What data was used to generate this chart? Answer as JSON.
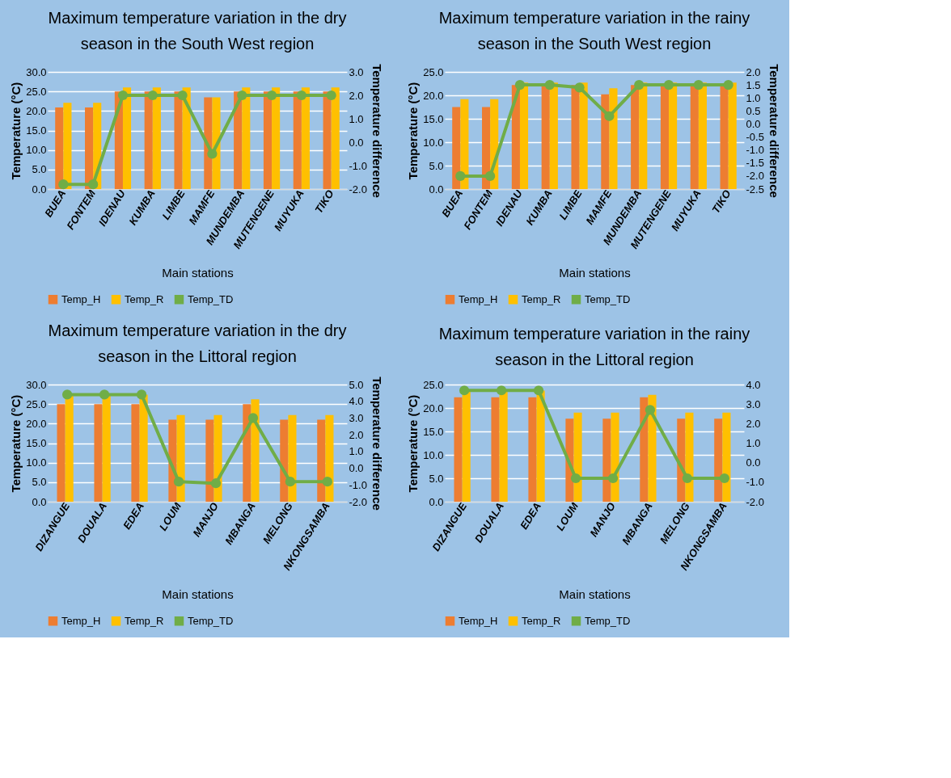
{
  "chart_data": [
    {
      "type": "bar",
      "title": "Maximum temperature variation in the dry season in the South West region",
      "xlabel": "Main stations",
      "ylabel": "Temperature (°C)",
      "y2label": "Temperature difference",
      "categories": [
        "BUEA",
        "FONTEM",
        "IDENAU",
        "KUMBA",
        "LIMBE",
        "MAMFE",
        "MUNDEMBA",
        "MUTENGENE",
        "MUYUKA",
        "TIKO"
      ],
      "series": [
        {
          "name": "Temp_H",
          "color": "#ed7d31",
          "values": [
            20.9,
            20.9,
            25.0,
            25.0,
            25.0,
            23.5,
            25.0,
            25.0,
            25.0,
            25.0
          ]
        },
        {
          "name": "Temp_R",
          "color": "#ffc000",
          "values": [
            22.1,
            22.1,
            26.0,
            26.0,
            26.0,
            23.5,
            26.0,
            26.0,
            26.0,
            26.0
          ]
        },
        {
          "name": "Temp_TD",
          "type": "line",
          "axis": "y2",
          "color": "#70ad47",
          "values": [
            -1.8,
            -1.8,
            2.0,
            2.0,
            2.0,
            -0.5,
            2.0,
            2.0,
            2.0,
            2.0
          ]
        }
      ],
      "ylim": [
        0,
        30
      ],
      "yticks": [
        {
          "value": 0,
          "label": "0.0"
        },
        {
          "value": 5,
          "label": "5.0"
        },
        {
          "value": 10,
          "label": "10.0"
        },
        {
          "value": 15,
          "label": "15.0"
        },
        {
          "value": 20,
          "label": "20.0"
        },
        {
          "value": 25,
          "label": "25.0"
        },
        {
          "value": 30,
          "label": "30.0"
        }
      ],
      "y2lim": [
        -2,
        3
      ],
      "y2ticks": [
        {
          "value": -2,
          "label": "-2.0"
        },
        {
          "value": -1,
          "label": "-1.0"
        },
        {
          "value": 0,
          "label": "0.0"
        },
        {
          "value": 1,
          "label": "1.0"
        },
        {
          "value": 2,
          "label": "2.0"
        },
        {
          "value": 3,
          "label": "3.0"
        }
      ],
      "grid": "y",
      "legend": "bottom",
      "marker": "circle"
    },
    {
      "type": "bar",
      "title": "Maximum temperature variation in the rainy season in the South West region",
      "xlabel": "Main stations",
      "ylabel": "Temperature (°C)",
      "y2label": "Temperature difference",
      "categories": [
        "BUEA",
        "FONTEM",
        "IDENAU",
        "KUMBA",
        "LIMBE",
        "MAMFE",
        "MUNDEMBA",
        "MUTENGENE",
        "MUYUKA",
        "TIKO"
      ],
      "series": [
        {
          "name": "Temp_H",
          "color": "#ed7d31",
          "values": [
            17.5,
            17.5,
            22.2,
            22.2,
            22.2,
            20.2,
            22.2,
            22.2,
            22.2,
            22.2
          ]
        },
        {
          "name": "Temp_R",
          "color": "#ffc000",
          "values": [
            19.2,
            19.2,
            22.7,
            22.7,
            22.7,
            21.5,
            22.7,
            22.7,
            22.7,
            22.7
          ]
        },
        {
          "name": "Temp_TD",
          "type": "line",
          "axis": "y2",
          "color": "#70ad47",
          "values": [
            -2.0,
            -2.0,
            1.5,
            1.5,
            1.4,
            0.3,
            1.5,
            1.5,
            1.5,
            1.5
          ]
        }
      ],
      "ylim": [
        0,
        25
      ],
      "yticks": [
        {
          "value": 0,
          "label": "0.0"
        },
        {
          "value": 5,
          "label": "5.0"
        },
        {
          "value": 10,
          "label": "10.0"
        },
        {
          "value": 15,
          "label": "15.0"
        },
        {
          "value": 20,
          "label": "20.0"
        },
        {
          "value": 25,
          "label": "25.0"
        }
      ],
      "y2lim": [
        -2.5,
        2
      ],
      "y2ticks": [
        -2.5,
        {
          "value": -2,
          "label": "-2.0"
        },
        -1.5,
        {
          "value": -1,
          "label": "-1.0"
        },
        -0.5,
        {
          "value": 0,
          "label": "0.0"
        },
        0.5,
        {
          "value": 1,
          "label": "1.0"
        },
        1.5,
        {
          "value": 2,
          "label": "2.0"
        }
      ],
      "grid": "y",
      "legend": "bottom",
      "marker": "circle"
    },
    {
      "type": "bar",
      "title": "Maximum temperature variation in the dry season in the Littoral region",
      "xlabel": "Main stations",
      "ylabel": "Temperature (°C)",
      "y2label": "Temperature difference",
      "categories": [
        "DIZANGUE",
        "DOUALA",
        "EDEA",
        "LOUM",
        "MANJO",
        "MBANGA",
        "MELONG",
        "NKONGSAMBA"
      ],
      "series": [
        {
          "name": "Temp_H",
          "color": "#ed7d31",
          "values": [
            25.0,
            25.0,
            25.0,
            21.0,
            21.0,
            25.0,
            21.0,
            21.0
          ]
        },
        {
          "name": "Temp_R",
          "color": "#ffc000",
          "values": [
            27.4,
            27.4,
            27.4,
            22.2,
            22.2,
            26.2,
            22.2,
            22.2
          ]
        },
        {
          "name": "Temp_TD",
          "type": "line",
          "axis": "y2",
          "color": "#70ad47",
          "values": [
            4.4,
            4.4,
            4.4,
            -0.8,
            -0.9,
            3.0,
            -0.8,
            -0.8
          ]
        }
      ],
      "ylim": [
        0,
        30
      ],
      "yticks": [
        {
          "value": 0,
          "label": "0.0"
        },
        {
          "value": 5,
          "label": "5.0"
        },
        {
          "value": 10,
          "label": "10.0"
        },
        {
          "value": 15,
          "label": "15.0"
        },
        {
          "value": 20,
          "label": "20.0"
        },
        {
          "value": 25,
          "label": "25.0"
        },
        {
          "value": 30,
          "label": "30.0"
        }
      ],
      "y2lim": [
        -2,
        5
      ],
      "y2ticks": [
        {
          "value": -2,
          "label": "-2.0"
        },
        {
          "value": -1,
          "label": "-1.0"
        },
        {
          "value": 0,
          "label": "0.0"
        },
        {
          "value": 1,
          "label": "1.0"
        },
        {
          "value": 2,
          "label": "2.0"
        },
        {
          "value": 3,
          "label": "3.0"
        },
        {
          "value": 4,
          "label": "4.0"
        },
        {
          "value": 5,
          "label": "5.0"
        }
      ],
      "grid": "y",
      "legend": "bottom",
      "marker": "circle"
    },
    {
      "type": "bar",
      "title": "Maximum temperature variation in the rainy season in the Littoral region",
      "xlabel": "Main stations",
      "ylabel": "Temperature (°C)",
      "categories": [
        "DIZANGUE",
        "DOUALA",
        "EDEA",
        "LOUM",
        "MANJO",
        "MBANGA",
        "MELONG",
        "NKONGSAMBA"
      ],
      "series": [
        {
          "name": "Temp_H",
          "color": "#ed7d31",
          "values": [
            22.3,
            22.3,
            22.3,
            17.7,
            17.7,
            22.3,
            17.7,
            17.7
          ]
        },
        {
          "name": "Temp_R",
          "color": "#ffc000",
          "values": [
            23.7,
            23.7,
            23.7,
            19.0,
            19.0,
            22.8,
            19.0,
            19.0
          ]
        },
        {
          "name": "Temp_TD",
          "type": "line",
          "axis": "y2",
          "color": "#70ad47",
          "values": [
            3.7,
            3.7,
            3.7,
            -0.8,
            -0.8,
            2.7,
            -0.8,
            -0.8
          ]
        }
      ],
      "ylim": [
        0,
        25
      ],
      "yticks": [
        {
          "value": 0,
          "label": "0.0"
        },
        {
          "value": 5,
          "label": "5.0"
        },
        {
          "value": 10,
          "label": "10.0"
        },
        {
          "value": 15,
          "label": "15.0"
        },
        {
          "value": 20,
          "label": "20.0"
        },
        {
          "value": 25,
          "label": "25.0"
        }
      ],
      "y2lim": [
        -2,
        4
      ],
      "y2ticks": [
        {
          "value": -2,
          "label": "-2.0"
        },
        {
          "value": -1,
          "label": "-1.0"
        },
        {
          "value": 0,
          "label": "0.0"
        },
        {
          "value": 1,
          "label": "1.0"
        },
        {
          "value": 2,
          "label": "2.0"
        },
        {
          "value": 3,
          "label": "3.0"
        },
        {
          "value": 4,
          "label": "4.0"
        }
      ],
      "grid": "y",
      "legend": "bottom",
      "marker": "circle"
    }
  ]
}
